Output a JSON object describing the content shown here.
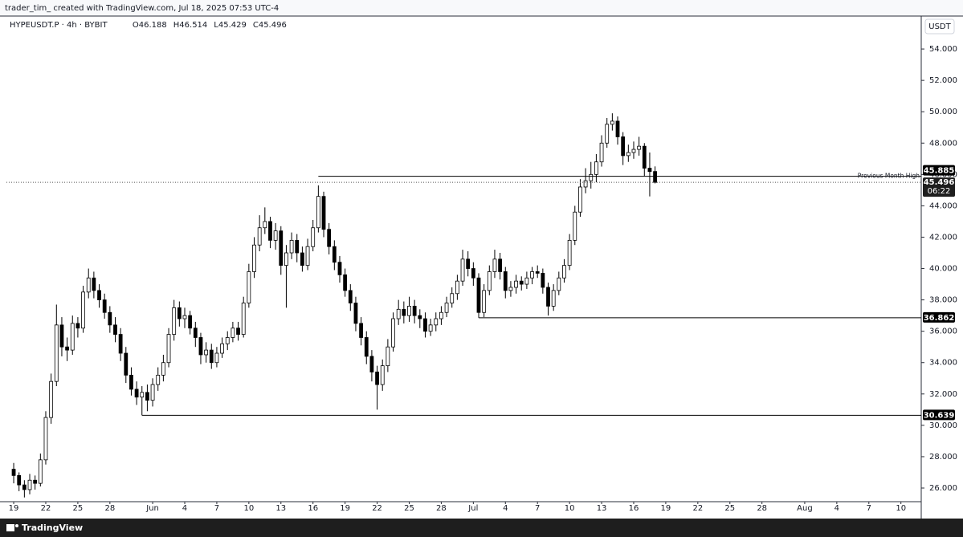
{
  "chart_data": {
    "type": "candlestick",
    "header": "trader_tim_ created with TradingView.com, Jul 18, 2025 07:53 UTC-4",
    "symbol": "HYPEUSDT.P · 4h · BYBIT",
    "ohlc": [
      {
        "value": 46.188,
        "label": "O46.188"
      },
      {
        "value": 46.514,
        "label": "H46.514"
      },
      {
        "value": 45.429,
        "label": "L45.429"
      },
      {
        "value": 45.496,
        "label": "C45.496"
      }
    ],
    "currency": "USDT",
    "footer": "TradingView",
    "up_color": "#ffffff",
    "down_color": "#000000",
    "x": [
      0,
      0.5,
      1,
      1.5,
      2,
      2.5,
      3,
      3.5,
      4,
      4.5,
      5,
      5.5,
      6,
      6.5,
      7,
      7.5,
      8,
      8.5,
      9,
      9.5,
      10,
      10.5,
      11,
      11.5,
      12,
      12.5,
      13,
      13.5,
      14,
      14.5,
      15,
      15.5,
      16,
      16.5,
      17,
      17.5,
      18,
      18.5,
      19,
      19.5,
      20,
      20.5,
      21,
      21.5,
      22,
      22.5,
      23,
      23.5,
      24,
      24.5,
      25,
      25.5,
      26,
      26.5,
      27,
      27.5,
      28,
      28.5,
      29,
      29.5,
      30,
      30.5,
      31,
      31.5,
      32,
      32.5,
      33,
      33.5,
      34,
      34.5,
      35,
      35.5,
      36,
      36.5,
      37,
      37.5,
      38,
      38.5,
      39,
      39.5,
      40,
      40.5,
      41,
      41.5,
      42,
      42.5,
      43,
      43.5,
      44,
      44.5,
      45,
      45.5,
      46,
      46.5,
      47,
      47.5,
      48,
      48.5,
      49,
      49.5,
      50,
      50.5,
      51,
      51.5,
      52,
      52.5,
      53,
      53.5,
      54,
      54.5,
      55,
      55.5,
      56,
      56.5,
      57,
      57.5,
      58,
      58.5,
      59,
      59.5,
      60
    ],
    "candles": [
      [
        27.2,
        27.6,
        26.3,
        26.8
      ],
      [
        26.8,
        27.0,
        25.8,
        26.2
      ],
      [
        26.2,
        26.5,
        25.4,
        25.9
      ],
      [
        25.9,
        26.9,
        25.6,
        26.5
      ],
      [
        26.5,
        26.8,
        25.9,
        26.3
      ],
      [
        26.3,
        28.2,
        26.1,
        27.8
      ],
      [
        27.8,
        30.9,
        27.5,
        30.5
      ],
      [
        30.5,
        33.3,
        30.1,
        32.8
      ],
      [
        32.8,
        37.7,
        32.5,
        36.4
      ],
      [
        36.4,
        36.9,
        34.4,
        35.0
      ],
      [
        35.0,
        35.6,
        34.1,
        34.8
      ],
      [
        34.8,
        37.0,
        34.5,
        36.5
      ],
      [
        36.5,
        36.9,
        35.6,
        36.2
      ],
      [
        36.2,
        38.9,
        35.9,
        38.5
      ],
      [
        38.5,
        40.0,
        38.1,
        39.4
      ],
      [
        39.4,
        39.8,
        38.1,
        38.6
      ],
      [
        38.6,
        39.0,
        37.5,
        38.0
      ],
      [
        38.0,
        38.4,
        36.8,
        37.2
      ],
      [
        37.2,
        37.6,
        35.9,
        36.4
      ],
      [
        36.4,
        36.9,
        35.3,
        35.8
      ],
      [
        35.8,
        36.2,
        34.1,
        34.6
      ],
      [
        34.6,
        35.0,
        32.7,
        33.2
      ],
      [
        33.2,
        33.7,
        31.9,
        32.3
      ],
      [
        32.3,
        32.8,
        31.3,
        31.8
      ],
      [
        31.8,
        32.5,
        30.639,
        32.1
      ],
      [
        32.1,
        32.6,
        30.9,
        31.6
      ],
      [
        31.6,
        33.0,
        31.2,
        32.6
      ],
      [
        32.6,
        33.7,
        32.2,
        33.2
      ],
      [
        33.2,
        34.5,
        32.8,
        34.0
      ],
      [
        34.0,
        36.2,
        33.7,
        35.8
      ],
      [
        35.8,
        38.0,
        35.4,
        37.5
      ],
      [
        37.5,
        37.9,
        36.3,
        36.8
      ],
      [
        36.8,
        37.5,
        36.2,
        37.0
      ],
      [
        37.0,
        37.3,
        35.8,
        36.2
      ],
      [
        36.2,
        36.6,
        35.0,
        35.6
      ],
      [
        35.6,
        35.9,
        33.9,
        34.5
      ],
      [
        34.5,
        35.3,
        34.0,
        34.8
      ],
      [
        34.8,
        35.2,
        33.6,
        34.0
      ],
      [
        34.0,
        35.0,
        33.7,
        34.6
      ],
      [
        34.6,
        35.6,
        34.3,
        35.2
      ],
      [
        35.2,
        36.0,
        34.8,
        35.6
      ],
      [
        35.6,
        36.6,
        35.3,
        36.2
      ],
      [
        36.2,
        36.6,
        35.4,
        35.8
      ],
      [
        35.8,
        38.2,
        35.6,
        37.8
      ],
      [
        37.8,
        40.3,
        37.5,
        39.8
      ],
      [
        39.8,
        42.0,
        39.4,
        41.5
      ],
      [
        41.5,
        43.4,
        41.1,
        42.6
      ],
      [
        42.6,
        43.9,
        42.2,
        43.0
      ],
      [
        43.0,
        43.3,
        41.3,
        41.8
      ],
      [
        41.8,
        42.9,
        41.2,
        42.4
      ],
      [
        42.4,
        42.7,
        39.6,
        40.2
      ],
      [
        40.2,
        41.5,
        37.5,
        41.0
      ],
      [
        41.0,
        42.3,
        40.6,
        41.8
      ],
      [
        41.8,
        42.2,
        40.4,
        41.0
      ],
      [
        41.0,
        41.4,
        39.8,
        40.2
      ],
      [
        40.2,
        41.9,
        39.9,
        41.4
      ],
      [
        41.4,
        43.1,
        41.1,
        42.6
      ],
      [
        42.6,
        45.3,
        42.3,
        44.6
      ],
      [
        44.6,
        44.9,
        42.0,
        42.5
      ],
      [
        42.5,
        42.9,
        40.9,
        41.4
      ],
      [
        41.4,
        41.8,
        39.9,
        40.4
      ],
      [
        40.4,
        40.8,
        39.1,
        39.6
      ],
      [
        39.6,
        40.0,
        38.2,
        38.6
      ],
      [
        38.6,
        39.0,
        37.3,
        37.8
      ],
      [
        37.8,
        38.2,
        36.0,
        36.5
      ],
      [
        36.5,
        36.9,
        35.1,
        35.6
      ],
      [
        35.6,
        36.0,
        33.9,
        34.4
      ],
      [
        34.4,
        34.8,
        32.8,
        33.4
      ],
      [
        33.4,
        33.8,
        31.0,
        32.6
      ],
      [
        32.6,
        34.2,
        32.2,
        33.8
      ],
      [
        33.8,
        35.5,
        33.4,
        35.0
      ],
      [
        35.0,
        37.2,
        34.7,
        36.8
      ],
      [
        36.8,
        38.0,
        36.4,
        37.4
      ],
      [
        37.4,
        37.9,
        36.5,
        37.0
      ],
      [
        37.0,
        38.2,
        36.6,
        37.6
      ],
      [
        37.6,
        38.0,
        36.5,
        37.0
      ],
      [
        37.0,
        37.4,
        36.2,
        36.8
      ],
      [
        36.8,
        37.2,
        35.6,
        36.0
      ],
      [
        36.0,
        36.8,
        35.7,
        36.4
      ],
      [
        36.4,
        37.2,
        36.0,
        36.8
      ],
      [
        36.8,
        37.6,
        36.4,
        37.2
      ],
      [
        37.2,
        38.2,
        36.9,
        37.8
      ],
      [
        37.8,
        38.8,
        37.5,
        38.4
      ],
      [
        38.4,
        39.6,
        38.0,
        39.2
      ],
      [
        39.2,
        41.2,
        38.9,
        40.6
      ],
      [
        40.6,
        41.1,
        39.5,
        40.0
      ],
      [
        40.0,
        40.4,
        38.9,
        39.4
      ],
      [
        39.4,
        39.7,
        36.862,
        37.2
      ],
      [
        37.2,
        39.0,
        36.9,
        38.6
      ],
      [
        38.6,
        40.2,
        38.3,
        39.8
      ],
      [
        39.8,
        41.2,
        39.4,
        40.6
      ],
      [
        40.6,
        41.0,
        39.3,
        39.8
      ],
      [
        39.8,
        40.1,
        38.1,
        38.6
      ],
      [
        38.6,
        39.2,
        38.2,
        38.8
      ],
      [
        38.8,
        39.6,
        38.4,
        39.2
      ],
      [
        39.2,
        39.5,
        38.6,
        39.0
      ],
      [
        39.0,
        39.8,
        38.7,
        39.4
      ],
      [
        39.4,
        40.1,
        39.0,
        39.8
      ],
      [
        39.8,
        40.2,
        39.4,
        39.7
      ],
      [
        39.7,
        40.0,
        38.4,
        38.8
      ],
      [
        38.8,
        39.1,
        37.0,
        37.6
      ],
      [
        37.6,
        39.0,
        37.3,
        38.6
      ],
      [
        38.6,
        39.8,
        38.3,
        39.4
      ],
      [
        39.4,
        40.6,
        39.1,
        40.2
      ],
      [
        40.2,
        42.2,
        39.9,
        41.8
      ],
      [
        41.8,
        44.0,
        41.5,
        43.6
      ],
      [
        43.6,
        45.7,
        43.3,
        45.2
      ],
      [
        45.2,
        46.4,
        44.8,
        45.6
      ],
      [
        45.6,
        46.8,
        45.1,
        46.0
      ],
      [
        46.0,
        47.3,
        45.5,
        46.8
      ],
      [
        46.8,
        48.5,
        46.5,
        48.0
      ],
      [
        48.0,
        49.6,
        47.7,
        49.2
      ],
      [
        49.2,
        49.9,
        48.8,
        49.4
      ],
      [
        49.4,
        49.7,
        47.9,
        48.4
      ],
      [
        48.4,
        48.7,
        46.6,
        47.2
      ],
      [
        47.2,
        47.9,
        46.8,
        47.4
      ],
      [
        47.4,
        48.1,
        47.0,
        47.6
      ],
      [
        47.6,
        48.4,
        47.2,
        47.8
      ],
      [
        47.8,
        48.0,
        45.9,
        46.4
      ],
      [
        46.4,
        47.4,
        44.6,
        46.188
      ],
      [
        46.188,
        46.514,
        45.429,
        45.496
      ]
    ],
    "levels": [
      {
        "value": 45.885,
        "start": 28.5,
        "name": "Previous Month High"
      },
      {
        "value": 36.862,
        "start": 43.5
      },
      {
        "value": 30.639,
        "start": 12
      }
    ],
    "last_price": 45.496,
    "countdown": "06:22",
    "xlim": [
      -0.68,
      84.9
    ],
    "ylim": [
      25.13,
      56.0
    ],
    "xticks": [
      {
        "value": 0,
        "label": "19"
      },
      {
        "value": 3,
        "label": "22"
      },
      {
        "value": 6,
        "label": "25"
      },
      {
        "value": 9,
        "label": "28"
      },
      {
        "value": 13,
        "label": "Jun"
      },
      {
        "value": 16,
        "label": "4"
      },
      {
        "value": 19,
        "label": "7"
      },
      {
        "value": 22,
        "label": "10"
      },
      {
        "value": 25,
        "label": "13"
      },
      {
        "value": 28,
        "label": "16"
      },
      {
        "value": 31,
        "label": "19"
      },
      {
        "value": 34,
        "label": "22"
      },
      {
        "value": 37,
        "label": "25"
      },
      {
        "value": 40,
        "label": "28"
      },
      {
        "value": 43,
        "label": "Jul"
      },
      {
        "value": 46,
        "label": "4"
      },
      {
        "value": 49,
        "label": "7"
      },
      {
        "value": 52,
        "label": "10"
      },
      {
        "value": 55,
        "label": "13"
      },
      {
        "value": 58,
        "label": "16"
      },
      {
        "value": 61,
        "label": "19"
      },
      {
        "value": 64,
        "label": "22"
      },
      {
        "value": 67,
        "label": "25"
      },
      {
        "value": 70,
        "label": "28"
      },
      {
        "value": 74,
        "label": "Aug"
      },
      {
        "value": 77,
        "label": "4"
      },
      {
        "value": 80,
        "label": "7"
      },
      {
        "value": 83,
        "label": "10"
      }
    ],
    "yticks": [
      {
        "value": 26,
        "label": "26.000"
      },
      {
        "value": 28,
        "label": "28.000"
      },
      {
        "value": 30,
        "label": "30.000"
      },
      {
        "value": 32,
        "label": "32.000"
      },
      {
        "value": 34,
        "label": "34.000"
      },
      {
        "value": 36,
        "label": "36.000"
      },
      {
        "value": 38,
        "label": "38.000"
      },
      {
        "value": 40,
        "label": "40.000"
      },
      {
        "value": 42,
        "label": "42.000"
      },
      {
        "value": 44,
        "label": "44.000"
      },
      {
        "value": 46,
        "label": "46.000"
      },
      {
        "value": 48,
        "label": "48.000"
      },
      {
        "value": 50,
        "label": "50.000"
      },
      {
        "value": 52,
        "label": "52.000"
      },
      {
        "value": 54,
        "label": "54.000"
      }
    ]
  }
}
